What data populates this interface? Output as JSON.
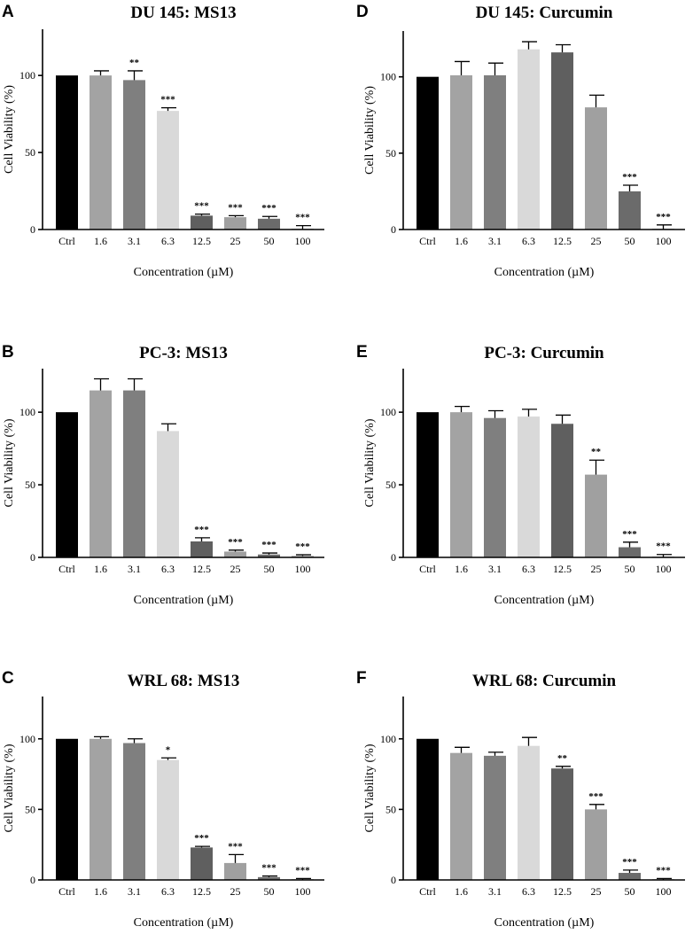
{
  "chart_data": [
    {
      "panel": "A",
      "type": "bar",
      "title": "DU 145: MS13",
      "xlabel": "Concentration (µM)",
      "ylabel": "Cell Viability (%)",
      "ylim": [
        0,
        130
      ],
      "yticks": [
        0,
        50,
        100
      ],
      "categories": [
        "Ctrl",
        "1.6",
        "3.1",
        "6.3",
        "12.5",
        "25",
        "50",
        "100"
      ],
      "values": [
        100,
        100,
        97,
        77,
        9,
        8,
        7,
        0
      ],
      "errors": [
        0,
        3,
        6,
        2,
        1,
        1,
        1.5,
        2.5
      ],
      "significance": [
        "",
        "",
        "**",
        "***",
        "***",
        "***",
        "***",
        "***"
      ],
      "colors": [
        "#000000",
        "#a3a3a3",
        "#7f7f7f",
        "#d9d9d9",
        "#5f5f5f",
        "#a0a0a0",
        "#6b6b6b",
        "#9e9e9e"
      ]
    },
    {
      "panel": "D",
      "type": "bar",
      "title": "DU 145: Curcumin",
      "xlabel": "Concentration (µM)",
      "ylabel": "Cell Viability (%)",
      "ylim": [
        0,
        130
      ],
      "yticks": [
        0,
        50,
        100
      ],
      "categories": [
        "Ctrl",
        "1.6",
        "3.1",
        "6.3",
        "12.5",
        "25",
        "50",
        "100"
      ],
      "values": [
        100,
        101,
        101,
        118,
        116,
        80,
        25,
        0
      ],
      "errors": [
        0,
        9,
        8,
        5,
        5,
        8,
        4,
        3
      ],
      "significance": [
        "",
        "",
        "",
        "",
        "",
        "",
        "***",
        "***"
      ],
      "colors": [
        "#000000",
        "#a3a3a3",
        "#7f7f7f",
        "#d9d9d9",
        "#5f5f5f",
        "#a0a0a0",
        "#6b6b6b",
        "#9e9e9e"
      ]
    },
    {
      "panel": "B",
      "type": "bar",
      "title": "PC-3: MS13",
      "xlabel": "Concentration (µM)",
      "ylabel": "Cell Viability (%)",
      "ylim": [
        0,
        130
      ],
      "yticks": [
        0,
        50,
        100
      ],
      "categories": [
        "Ctrl",
        "1.6",
        "3.1",
        "6.3",
        "12.5",
        "25",
        "50",
        "100"
      ],
      "values": [
        100,
        115,
        115,
        87,
        11,
        4,
        2,
        1
      ],
      "errors": [
        0,
        8,
        8,
        5,
        2.5,
        1,
        1,
        0.8
      ],
      "significance": [
        "",
        "",
        "",
        "",
        "***",
        "***",
        "***",
        "***"
      ],
      "colors": [
        "#000000",
        "#a3a3a3",
        "#7f7f7f",
        "#d9d9d9",
        "#5f5f5f",
        "#a0a0a0",
        "#6b6b6b",
        "#9e9e9e"
      ]
    },
    {
      "panel": "E",
      "type": "bar",
      "title": "PC-3: Curcumin",
      "xlabel": "Concentration (µM)",
      "ylabel": "Cell Viability (%)",
      "ylim": [
        0,
        130
      ],
      "yticks": [
        0,
        50,
        100
      ],
      "categories": [
        "Ctrl",
        "1.6",
        "3.1",
        "6.3",
        "12.5",
        "25",
        "50",
        "100"
      ],
      "values": [
        100,
        100,
        96,
        97,
        92,
        57,
        7,
        0
      ],
      "errors": [
        0,
        4,
        5,
        5,
        6,
        10,
        3.5,
        2
      ],
      "significance": [
        "",
        "",
        "",
        "",
        "",
        "**",
        "***",
        "***"
      ],
      "colors": [
        "#000000",
        "#a3a3a3",
        "#7f7f7f",
        "#d9d9d9",
        "#5f5f5f",
        "#a0a0a0",
        "#6b6b6b",
        "#9e9e9e"
      ]
    },
    {
      "panel": "C",
      "type": "bar",
      "title": "WRL 68: MS13",
      "xlabel": "Concentration (µM)",
      "ylabel": "Cell Viability (%)",
      "ylim": [
        0,
        130
      ],
      "yticks": [
        0,
        50,
        100
      ],
      "categories": [
        "Ctrl",
        "1.6",
        "3.1",
        "6.3",
        "12.5",
        "25",
        "50",
        "100"
      ],
      "values": [
        100,
        100,
        97,
        85,
        23,
        12,
        2,
        0
      ],
      "errors": [
        0,
        1.5,
        3,
        1.5,
        0.8,
        6,
        0.8,
        1
      ],
      "significance": [
        "",
        "",
        "",
        "*",
        "***",
        "***",
        "***",
        "***"
      ],
      "colors": [
        "#000000",
        "#a3a3a3",
        "#7f7f7f",
        "#d9d9d9",
        "#5f5f5f",
        "#a0a0a0",
        "#6b6b6b",
        "#9e9e9e"
      ]
    },
    {
      "panel": "F",
      "type": "bar",
      "title": "WRL 68: Curcumin",
      "xlabel": "Concentration (µM)",
      "ylabel": "Cell Viability (%)",
      "ylim": [
        0,
        130
      ],
      "yticks": [
        0,
        50,
        100
      ],
      "categories": [
        "Ctrl",
        "1.6",
        "3.1",
        "6.3",
        "12.5",
        "25",
        "50",
        "100"
      ],
      "values": [
        100,
        90,
        88,
        95,
        79,
        50,
        5,
        0
      ],
      "errors": [
        0,
        4,
        2.5,
        6,
        1.5,
        3.5,
        2,
        1
      ],
      "significance": [
        "",
        "",
        "",
        "",
        "**",
        "***",
        "***",
        "***"
      ],
      "colors": [
        "#000000",
        "#a3a3a3",
        "#7f7f7f",
        "#d9d9d9",
        "#5f5f5f",
        "#a0a0a0",
        "#6b6b6b",
        "#9e9e9e"
      ]
    }
  ]
}
